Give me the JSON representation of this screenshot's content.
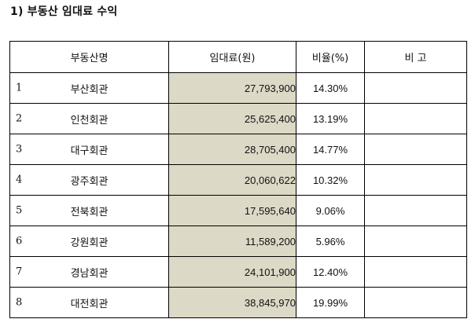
{
  "section_title": "1) 부동산 임대료 수익",
  "table": {
    "headers": {
      "name": "부동산명",
      "rent": "임대료(원)",
      "ratio": "비율(%)",
      "note": "비 고"
    },
    "rows": [
      {
        "no": "1",
        "name": "부산회관",
        "rent": "27,793,900",
        "ratio": "14.30%",
        "note": ""
      },
      {
        "no": "2",
        "name": "인천회관",
        "rent": "25,625,400",
        "ratio": "13.19%",
        "note": ""
      },
      {
        "no": "3",
        "name": "대구회관",
        "rent": "28,705,400",
        "ratio": "14.77%",
        "note": ""
      },
      {
        "no": "4",
        "name": "광주회관",
        "rent": "20,060,622",
        "ratio": "10.32%",
        "note": ""
      },
      {
        "no": "5",
        "name": "전북회관",
        "rent": "17,595,640",
        "ratio": "9.06%",
        "note": ""
      },
      {
        "no": "6",
        "name": "강원회관",
        "rent": "11,589,200",
        "ratio": "5.96%",
        "note": ""
      },
      {
        "no": "7",
        "name": "경남회관",
        "rent": "24,101,900",
        "ratio": "12.40%",
        "note": ""
      },
      {
        "no": "8",
        "name": "대전회관",
        "rent": "38,845,970",
        "ratio": "19.99%",
        "note": ""
      }
    ]
  },
  "colors": {
    "rent_cell_background": "#dcd9c6",
    "border": "#000000"
  }
}
